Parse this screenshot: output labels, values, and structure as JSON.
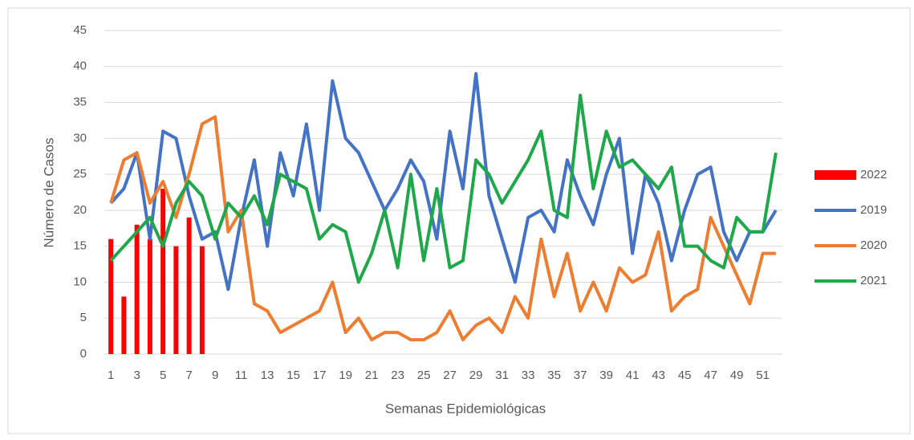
{
  "chart_data": {
    "type": "combo",
    "x_label": "Semanas Epidemiológicas",
    "y_label": "Número de Casos",
    "categories": [
      "1",
      null,
      "3",
      null,
      "5",
      null,
      "7",
      null,
      "9",
      null,
      "11",
      null,
      "13",
      null,
      "15",
      null,
      "17",
      null,
      "19",
      null,
      "21",
      null,
      "23",
      null,
      "25",
      null,
      "27",
      null,
      "29",
      null,
      "31",
      null,
      "33",
      null,
      "35",
      null,
      "37",
      null,
      "39",
      null,
      "41",
      null,
      "43",
      null,
      "45",
      null,
      "47",
      null,
      "49",
      null,
      "51",
      null
    ],
    "ylim": [
      0,
      45
    ],
    "yticks": [
      0,
      5,
      10,
      15,
      20,
      25,
      30,
      35,
      40,
      45
    ],
    "grid": true,
    "legend": "right",
    "series": [
      {
        "name": "2022",
        "type": "bar",
        "color": "#ff0000",
        "values": [
          16,
          8,
          18,
          16,
          23,
          15,
          19,
          15,
          null,
          null,
          null,
          null,
          null,
          null,
          null,
          null,
          null,
          null,
          null,
          null,
          null,
          null,
          null,
          null,
          null,
          null,
          null,
          null,
          null,
          null,
          null,
          null,
          null,
          null,
          null,
          null,
          null,
          null,
          null,
          null,
          null,
          null,
          null,
          null,
          null,
          null,
          null,
          null,
          null,
          null,
          null,
          null
        ]
      },
      {
        "name": "2019",
        "type": "line",
        "color": "#4472c4",
        "values": [
          21,
          23,
          28,
          16,
          31,
          30,
          22,
          16,
          17,
          9,
          19,
          27,
          15,
          28,
          22,
          32,
          20,
          38,
          30,
          28,
          24,
          20,
          23,
          27,
          24,
          16,
          31,
          23,
          39,
          22,
          16,
          10,
          19,
          20,
          17,
          27,
          22,
          18,
          25,
          30,
          14,
          25,
          21,
          13,
          20,
          25,
          26,
          17,
          13,
          17,
          17,
          20
        ]
      },
      {
        "name": "2020",
        "type": "line",
        "color": "#ed7d31",
        "values": [
          21,
          27,
          28,
          21,
          24,
          19,
          25,
          32,
          33,
          17,
          20,
          7,
          6,
          3,
          4,
          5,
          6,
          10,
          3,
          5,
          2,
          3,
          3,
          2,
          2,
          3,
          6,
          2,
          4,
          5,
          3,
          8,
          5,
          16,
          8,
          14,
          6,
          10,
          6,
          12,
          10,
          11,
          17,
          6,
          8,
          9,
          19,
          15,
          11,
          7,
          14,
          14
        ]
      },
      {
        "name": "2021",
        "type": "line",
        "color": "#1fa84a",
        "values": [
          13,
          15,
          17,
          19,
          15,
          21,
          24,
          22,
          16,
          21,
          19,
          22,
          18,
          25,
          24,
          23,
          16,
          18,
          17,
          10,
          14,
          20,
          12,
          25,
          13,
          23,
          12,
          13,
          27,
          25,
          21,
          24,
          27,
          31,
          20,
          19,
          36,
          23,
          31,
          26,
          27,
          25,
          23,
          26,
          15,
          15,
          13,
          12,
          19,
          17,
          17,
          28
        ]
      }
    ]
  }
}
